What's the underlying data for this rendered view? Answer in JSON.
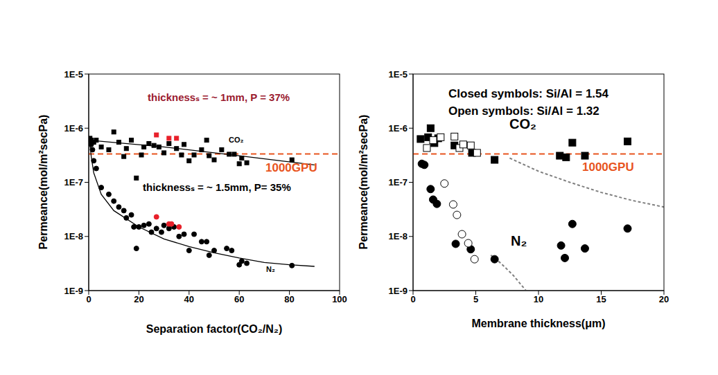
{
  "chart_data": [
    {
      "type": "scatter",
      "log": "y",
      "x_label": "Separation factor(CO₂/N₂)",
      "y_label": "Permeance(mol/m²secPa)",
      "xlim": [
        0,
        100
      ],
      "xticks": [
        0,
        20,
        40,
        60,
        80,
        100
      ],
      "ylim": [
        1e-09,
        1e-05
      ],
      "yticks": [
        {
          "value": 1e-09,
          "label": "1E-9"
        },
        {
          "value": 1e-08,
          "label": "1E-8"
        },
        {
          "value": 1e-07,
          "label": "1E-7"
        },
        {
          "value": 1e-06,
          "label": "1E-6"
        },
        {
          "value": 1e-05,
          "label": "1E-5"
        }
      ],
      "series": [
        {
          "type": "line",
          "color": "#e8541e",
          "line_style": "dashed",
          "x": [
            0,
            100
          ],
          "values": [
            3.35e-07,
            3.35e-07
          ]
        },
        {
          "type": "line",
          "color": "#000000",
          "line_style": "solid",
          "x": [
            0,
            30,
            60,
            90
          ],
          "values": [
            6e-07,
            4.5e-07,
            3.1e-07,
            2.1e-07
          ]
        },
        {
          "type": "line",
          "color": "#000000",
          "line_style": "solid",
          "x": [
            0.5,
            1,
            2,
            5,
            10,
            20,
            30,
            40,
            50,
            60,
            70,
            80,
            90
          ],
          "values": [
            5e-07,
            3e-07,
            1.5e-07,
            6e-08,
            3e-08,
            1.5e-08,
            9e-09,
            6.5e-09,
            5e-09,
            4e-09,
            3.3e-09,
            3e-09,
            2.8e-09
          ]
        },
        {
          "type": "scatter",
          "color": "#000000",
          "marker": "square",
          "x": [
            0.5,
            1,
            2,
            3,
            5,
            8,
            10,
            12,
            14,
            15,
            17,
            19,
            21,
            22,
            24,
            26,
            28,
            30,
            32,
            35,
            37,
            38,
            40,
            42,
            45,
            47,
            48,
            50,
            53,
            56,
            58,
            60,
            61,
            63,
            81
          ],
          "values": [
            6.5e-07,
            6e-07,
            5.5e-07,
            6e-07,
            4.5e-07,
            4e-07,
            8.5e-07,
            5.5e-07,
            3e-07,
            4.2e-07,
            6e-07,
            1.2e-07,
            3.2e-07,
            4.5e-07,
            5.2e-07,
            4.8e-07,
            4.5e-07,
            3.5e-07,
            5.2e-07,
            4.2e-07,
            3.2e-07,
            5e-07,
            2.5e-07,
            3.2e-07,
            4e-07,
            6e-07,
            3.1e-07,
            2.6e-07,
            4e-07,
            3.3e-07,
            3.3e-07,
            2.2e-07,
            2.8e-07,
            2.3e-07,
            2.6e-07
          ]
        },
        {
          "type": "scatter",
          "color": "#000000",
          "marker": "circle",
          "x": [
            0.5,
            1,
            1.5,
            2,
            3,
            5,
            8,
            10,
            12,
            14,
            15,
            17,
            18,
            19,
            20,
            22,
            24,
            25,
            27,
            29,
            30,
            32,
            34,
            36,
            38,
            40,
            42,
            45,
            47,
            48,
            50,
            55,
            57,
            60,
            61,
            63,
            81
          ],
          "values": [
            6e-07,
            5e-07,
            4e-07,
            2.5e-07,
            1.8e-07,
            8e-08,
            6e-08,
            4.5e-08,
            3.5e-08,
            3e-08,
            2.2e-08,
            2.5e-08,
            1.5e-08,
            6e-09,
            1.5e-08,
            1.6e-08,
            1.7e-08,
            1.2e-08,
            1.4e-08,
            1.2e-08,
            1.6e-08,
            1.4e-08,
            1.5e-08,
            1e-08,
            1.1e-08,
            5.5e-09,
            1.1e-08,
            8e-09,
            8e-09,
            4.5e-09,
            5.5e-09,
            6e-09,
            5.5e-09,
            3e-09,
            3.5e-09,
            3.2e-09,
            2.9e-09
          ]
        },
        {
          "type": "scatter",
          "color": "#e8202a",
          "marker": "square",
          "x": [
            27,
            32,
            35
          ],
          "values": [
            7.5e-07,
            6.5e-07,
            6.5e-07
          ]
        },
        {
          "type": "scatter",
          "color": "#e8202a",
          "marker": "circle",
          "x": [
            27,
            32,
            33,
            36
          ],
          "values": [
            2.3e-08,
            1.7e-08,
            1.7e-08,
            1.5e-08
          ]
        }
      ],
      "annotations": [
        {
          "text": "thicknessₛ = ~ 1mm, P = 37%",
          "color": "#9b1b30"
        },
        {
          "text": "1000GPU",
          "color": "#e8541e"
        },
        {
          "text": "thicknessₛ = ~ 1.5mm, P= 35%",
          "color": "#000000"
        },
        {
          "text": "CO₂",
          "color": "#000000"
        },
        {
          "text": "N₂",
          "color": "#000000"
        }
      ]
    },
    {
      "type": "scatter",
      "log": "y",
      "x_label": "Membrane thickness(μm)",
      "y_label": "Permeance(mol/m²secPa)",
      "xlim": [
        0,
        20
      ],
      "xticks": [
        0,
        5,
        10,
        15,
        20
      ],
      "ylim": [
        1e-09,
        1e-05
      ],
      "yticks": [
        {
          "value": 1e-09,
          "label": "1E-9"
        },
        {
          "value": 1e-08,
          "label": "1E-8"
        },
        {
          "value": 1e-07,
          "label": "1E-7"
        },
        {
          "value": 1e-06,
          "label": "1E-6"
        },
        {
          "value": 1e-05,
          "label": "1E-5"
        }
      ],
      "series": [
        {
          "type": "line",
          "color": "#e8541e",
          "line_style": "dashed",
          "x": [
            0,
            20
          ],
          "values": [
            3.35e-07,
            3.35e-07
          ]
        },
        {
          "type": "line",
          "color": "#7f7f7f",
          "line_style": "dotted",
          "x": [
            7.7,
            10,
            12.5,
            15,
            17.5,
            20
          ],
          "values": [
            2.8e-07,
            1.6e-07,
            1e-07,
            6.5e-08,
            4.6e-08,
            3.5e-08
          ]
        },
        {
          "type": "line",
          "color": "#7f7f7f",
          "line_style": "dotted",
          "x": [
            6.2,
            7,
            8,
            9
          ],
          "values": [
            4.5e-09,
            3.2e-09,
            1.9e-09,
            1e-09
          ]
        },
        {
          "type": "scatter",
          "color": "#000000",
          "marker": "square",
          "x": [
            0.6,
            1.2,
            1.4,
            1.7,
            2.0,
            3.3,
            4.7,
            6.5,
            11.7,
            12.2,
            12.7,
            13.7,
            17.1
          ],
          "values": [
            6.3e-07,
            6.8e-07,
            1e-06,
            5.3e-07,
            6.5e-07,
            4.8e-07,
            3.5e-07,
            2.6e-07,
            3.1e-07,
            2.9e-07,
            5.4e-07,
            3.1e-07,
            5.7e-07
          ]
        },
        {
          "type": "scatter",
          "color": "#000000",
          "marker": "open_square",
          "x": [
            1.1,
            1.6,
            2.2,
            3.3,
            3.7,
            4.0,
            4.6,
            5.1
          ],
          "values": [
            4.3e-07,
            6e-07,
            6.8e-07,
            7e-07,
            4.3e-07,
            5e-07,
            4.8e-07,
            3.5e-07
          ]
        },
        {
          "type": "scatter",
          "color": "#000000",
          "marker": "circle",
          "x": [
            0.7,
            0.9,
            1.4,
            1.6,
            1.9,
            3.4,
            4.6,
            6.5,
            11.8,
            12.1,
            12.7,
            13.7,
            17.1
          ],
          "values": [
            2.2e-07,
            2.1e-07,
            7.5e-08,
            4.8e-08,
            4e-08,
            7.3e-09,
            5.8e-09,
            3.8e-09,
            6.8e-09,
            4e-09,
            1.7e-08,
            6e-09,
            1.4e-08
          ]
        },
        {
          "type": "scatter",
          "color": "#000000",
          "marker": "open_circle",
          "x": [
            2.5,
            3.2,
            3.5,
            3.9,
            4.4,
            4.9
          ],
          "values": [
            9.5e-08,
            3.9e-08,
            2.5e-08,
            1.1e-08,
            7.5e-09,
            3.8e-09
          ]
        }
      ],
      "annotations": [
        {
          "text": "Closed symbols: Si/Al = 1.54",
          "color": "#000000"
        },
        {
          "text": "Open symbols: Si/Al = 1.32",
          "color": "#000000"
        },
        {
          "text": "CO₂",
          "color": "#000000"
        },
        {
          "text": "N₂",
          "color": "#000000"
        },
        {
          "text": "1000GPU",
          "color": "#e8541e"
        }
      ]
    }
  ]
}
